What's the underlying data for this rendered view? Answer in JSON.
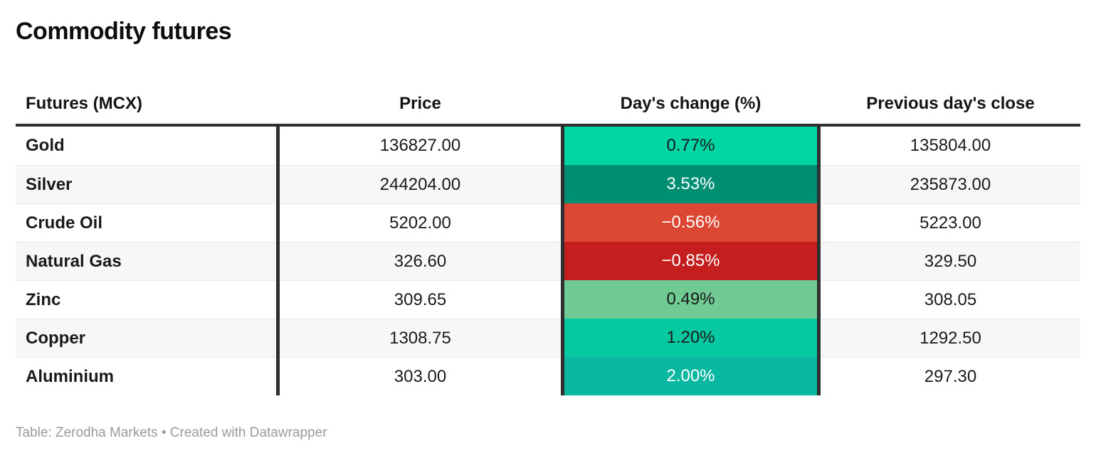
{
  "page": {
    "title": "Commodity futures",
    "footer": "Table: Zerodha Markets • Created with Datawrapper"
  },
  "table": {
    "headers": {
      "futures": "Futures (MCX)",
      "price": "Price",
      "change": "Day's change (%)",
      "prev_close": "Previous day's close"
    },
    "rows": [
      {
        "name": "Gold",
        "price": "136827.00",
        "change": "0.77%",
        "prev_close": "135804.00",
        "change_bg": "#00d5a4",
        "change_fg": "#1a1a1a"
      },
      {
        "name": "Silver",
        "price": "244204.00",
        "change": "3.53%",
        "prev_close": "235873.00",
        "change_bg": "#008e72",
        "change_fg": "#ffffff"
      },
      {
        "name": "Crude Oil",
        "price": "5202.00",
        "change": "−0.56%",
        "prev_close": "5223.00",
        "change_bg": "#dc4733",
        "change_fg": "#ffffff"
      },
      {
        "name": "Natural Gas",
        "price": "326.60",
        "change": "−0.85%",
        "prev_close": "329.50",
        "change_bg": "#c41f1e",
        "change_fg": "#ffffff"
      },
      {
        "name": "Zinc",
        "price": "309.65",
        "change": "0.49%",
        "prev_close": "308.05",
        "change_bg": "#70cb93",
        "change_fg": "#1a1a1a"
      },
      {
        "name": "Copper",
        "price": "1308.75",
        "change": "1.20%",
        "prev_close": "1292.50",
        "change_bg": "#06c8a1",
        "change_fg": "#1a1a1a"
      },
      {
        "name": "Aluminium",
        "price": "303.00",
        "change": "2.00%",
        "prev_close": "297.30",
        "change_bg": "#0ab8a1",
        "change_fg": "#ffffff"
      }
    ],
    "colors": {
      "divider": "#2f2f2f",
      "row_alt_bg": "#f7f7f7",
      "row_separator": "#e8e8e8"
    }
  },
  "chart_data": {
    "type": "table",
    "title": "Commodity futures",
    "columns": [
      "Futures (MCX)",
      "Price",
      "Day's change (%)",
      "Previous day's close"
    ],
    "rows": [
      [
        "Gold",
        136827.0,
        0.77,
        135804.0
      ],
      [
        "Silver",
        244204.0,
        3.53,
        235873.0
      ],
      [
        "Crude Oil",
        5202.0,
        -0.56,
        5223.0
      ],
      [
        "Natural Gas",
        326.6,
        -0.85,
        329.5
      ],
      [
        "Zinc",
        309.65,
        0.49,
        308.05
      ],
      [
        "Copper",
        1308.75,
        1.2,
        1292.5
      ],
      [
        "Aluminium",
        303.0,
        2.0,
        297.3
      ]
    ],
    "notes": "Day's change (%) cells are color-coded: green shades for positive change, red shades for negative change; darker shade indicates larger magnitude"
  }
}
